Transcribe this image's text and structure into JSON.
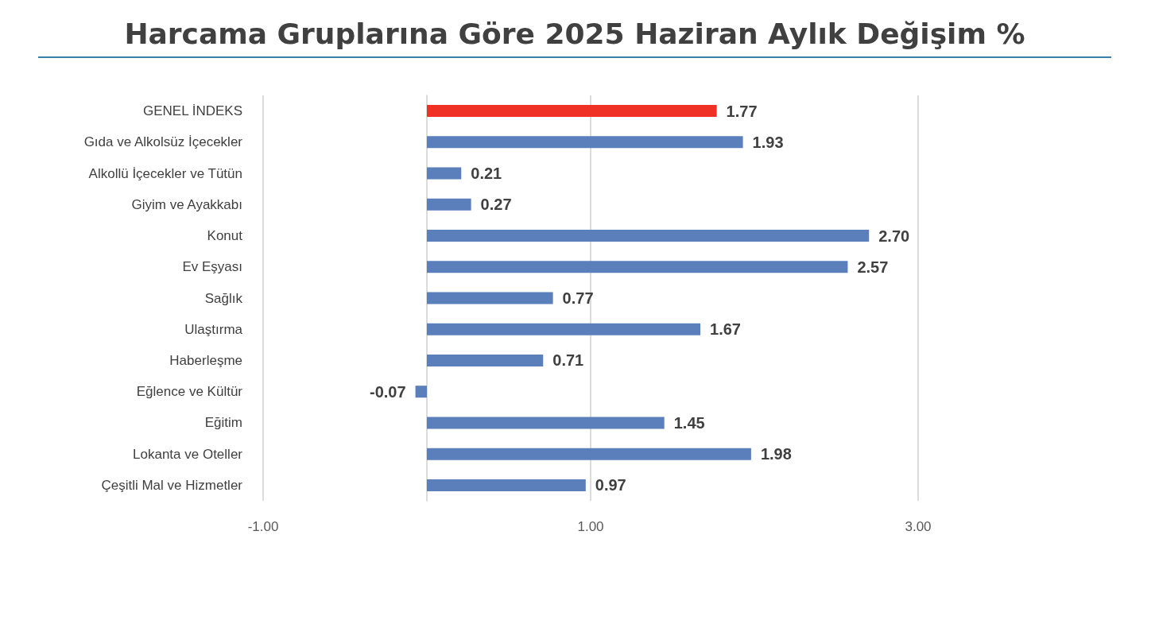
{
  "chart_data": {
    "type": "bar",
    "orientation": "horizontal",
    "title": "Harcama Gruplarına Göre 2025 Haziran Aylık Değişim %",
    "categories": [
      "GENEL İNDEKS",
      "Gıda ve Alkolsüz İçecekler",
      "Alkollü İçecekler ve Tütün",
      "Giyim ve Ayakkabı",
      "Konut",
      "Ev Eşyası",
      "Sağlık",
      "Ulaştırma",
      "Haberleşme",
      "Eğlence ve Kültür",
      "Eğitim",
      "Lokanta ve Oteller",
      "Çeşitli Mal ve Hizmetler"
    ],
    "values": [
      1.77,
      1.93,
      0.21,
      0.27,
      2.7,
      2.57,
      0.77,
      1.67,
      0.71,
      -0.07,
      1.45,
      1.98,
      0.97
    ],
    "value_labels": [
      "1.77",
      "1.93",
      "0.21",
      "0.27",
      "2.70",
      "2.57",
      "0.77",
      "1.67",
      "0.71",
      "-0.07",
      "1.45",
      "1.98",
      "0.97"
    ],
    "colors": [
      "#ee3124",
      "#5b7fbb",
      "#5b7fbb",
      "#5b7fbb",
      "#5b7fbb",
      "#5b7fbb",
      "#5b7fbb",
      "#5b7fbb",
      "#5b7fbb",
      "#5b7fbb",
      "#5b7fbb",
      "#5b7fbb",
      "#5b7fbb"
    ],
    "xlim": [
      -1,
      3
    ],
    "xticks": [
      {
        "value": -1,
        "label": "-1.00"
      },
      {
        "value": 1,
        "label": "1.00"
      },
      {
        "value": 3,
        "label": "3.00"
      }
    ],
    "grid": "x"
  }
}
